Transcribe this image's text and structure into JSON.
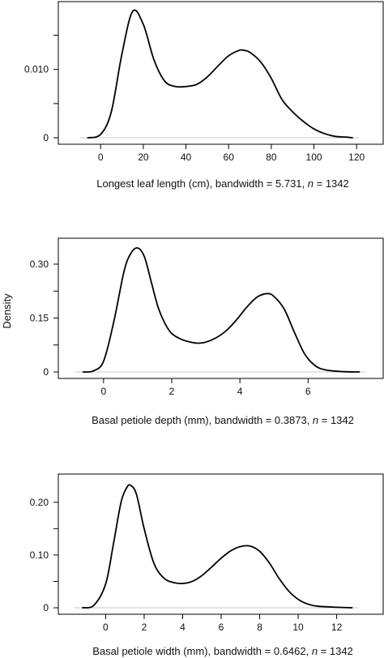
{
  "shared_ylabel": "Density",
  "chart_data": [
    {
      "type": "line",
      "title": "",
      "xlabel": "Longest leaf length (cm), bandwidth = 5.731, ",
      "n_symbol": "n",
      "n_text": " = 1342",
      "xlim": [
        -13,
        126
      ],
      "ylim": [
        0,
        0.0185
      ],
      "xticks": [
        0,
        20,
        40,
        60,
        80,
        100,
        120
      ],
      "xtick_labels": [
        "0",
        "20",
        "40",
        "60",
        "80",
        "100",
        "120"
      ],
      "yticks": [
        0,
        0.005,
        0.01,
        0.015
      ],
      "ytick_labels": [
        "0",
        "",
        "0.010",
        ""
      ],
      "x": [
        -6,
        0,
        5,
        10,
        15,
        20,
        25,
        30,
        35,
        40,
        45,
        50,
        55,
        60,
        65,
        67,
        70,
        75,
        80,
        85,
        90,
        95,
        100,
        105,
        110,
        115,
        118
      ],
      "y": [
        0.0,
        0.0005,
        0.0038,
        0.0123,
        0.0185,
        0.0166,
        0.0114,
        0.0083,
        0.0075,
        0.0075,
        0.0078,
        0.0089,
        0.0105,
        0.012,
        0.0128,
        0.0128,
        0.0125,
        0.0111,
        0.0087,
        0.0056,
        0.0038,
        0.0024,
        0.0013,
        0.0006,
        0.0002,
        0.0001,
        0.0
      ]
    },
    {
      "type": "line",
      "title": "",
      "xlabel": "Basal petiole depth (mm), bandwidth = 0.3873, ",
      "n_symbol": "n",
      "n_text": " = 1342",
      "xlim": [
        -0.9,
        7.8
      ],
      "ylim": [
        0,
        0.345
      ],
      "xticks": [
        0,
        2,
        4,
        6
      ],
      "xtick_labels": [
        "0",
        "2",
        "4",
        "6"
      ],
      "yticks": [
        0,
        0.075,
        0.15,
        0.225,
        0.3
      ],
      "ytick_labels": [
        "0",
        "",
        "0.15",
        "",
        "0.30"
      ],
      "x": [
        -0.6,
        -0.3,
        0.0,
        0.3,
        0.6,
        0.8,
        1.0,
        1.2,
        1.4,
        1.6,
        1.8,
        2.0,
        2.3,
        2.6,
        2.8,
        3.0,
        3.3,
        3.6,
        3.9,
        4.2,
        4.5,
        4.8,
        5.0,
        5.3,
        5.6,
        5.9,
        6.2,
        6.5,
        7.0,
        7.5
      ],
      "y": [
        0.0,
        0.003,
        0.03,
        0.14,
        0.28,
        0.33,
        0.345,
        0.32,
        0.25,
        0.18,
        0.135,
        0.107,
        0.09,
        0.082,
        0.08,
        0.083,
        0.095,
        0.115,
        0.145,
        0.18,
        0.208,
        0.218,
        0.21,
        0.175,
        0.11,
        0.05,
        0.018,
        0.006,
        0.001,
        0.0
      ]
    },
    {
      "type": "line",
      "title": "",
      "xlabel": "Basal petiole width (mm), bandwidth = 0.6462, ",
      "n_symbol": "n",
      "n_text": " = 1342",
      "xlim": [
        -1.7,
        13.7
      ],
      "ylim": [
        0,
        0.235
      ],
      "xticks": [
        0,
        2,
        4,
        6,
        8,
        10,
        12
      ],
      "xtick_labels": [
        "0",
        "2",
        "4",
        "6",
        "8",
        "10",
        "12"
      ],
      "yticks": [
        0,
        0.05,
        0.1,
        0.15,
        0.2
      ],
      "ytick_labels": [
        "0",
        "",
        "0.10",
        "",
        "0.20"
      ],
      "x": [
        -1.2,
        -0.6,
        0.0,
        0.4,
        0.8,
        1.1,
        1.3,
        1.6,
        2.0,
        2.5,
        3.0,
        3.5,
        4.0,
        4.5,
        5.0,
        5.5,
        6.0,
        6.5,
        7.0,
        7.5,
        8.0,
        8.5,
        9.0,
        9.5,
        10.0,
        10.5,
        11.0,
        12.0,
        12.8
      ],
      "y": [
        0.0,
        0.005,
        0.045,
        0.12,
        0.2,
        0.228,
        0.232,
        0.215,
        0.15,
        0.085,
        0.057,
        0.048,
        0.046,
        0.05,
        0.061,
        0.077,
        0.094,
        0.108,
        0.116,
        0.117,
        0.107,
        0.085,
        0.056,
        0.032,
        0.016,
        0.007,
        0.003,
        0.001,
        0.0
      ]
    }
  ]
}
